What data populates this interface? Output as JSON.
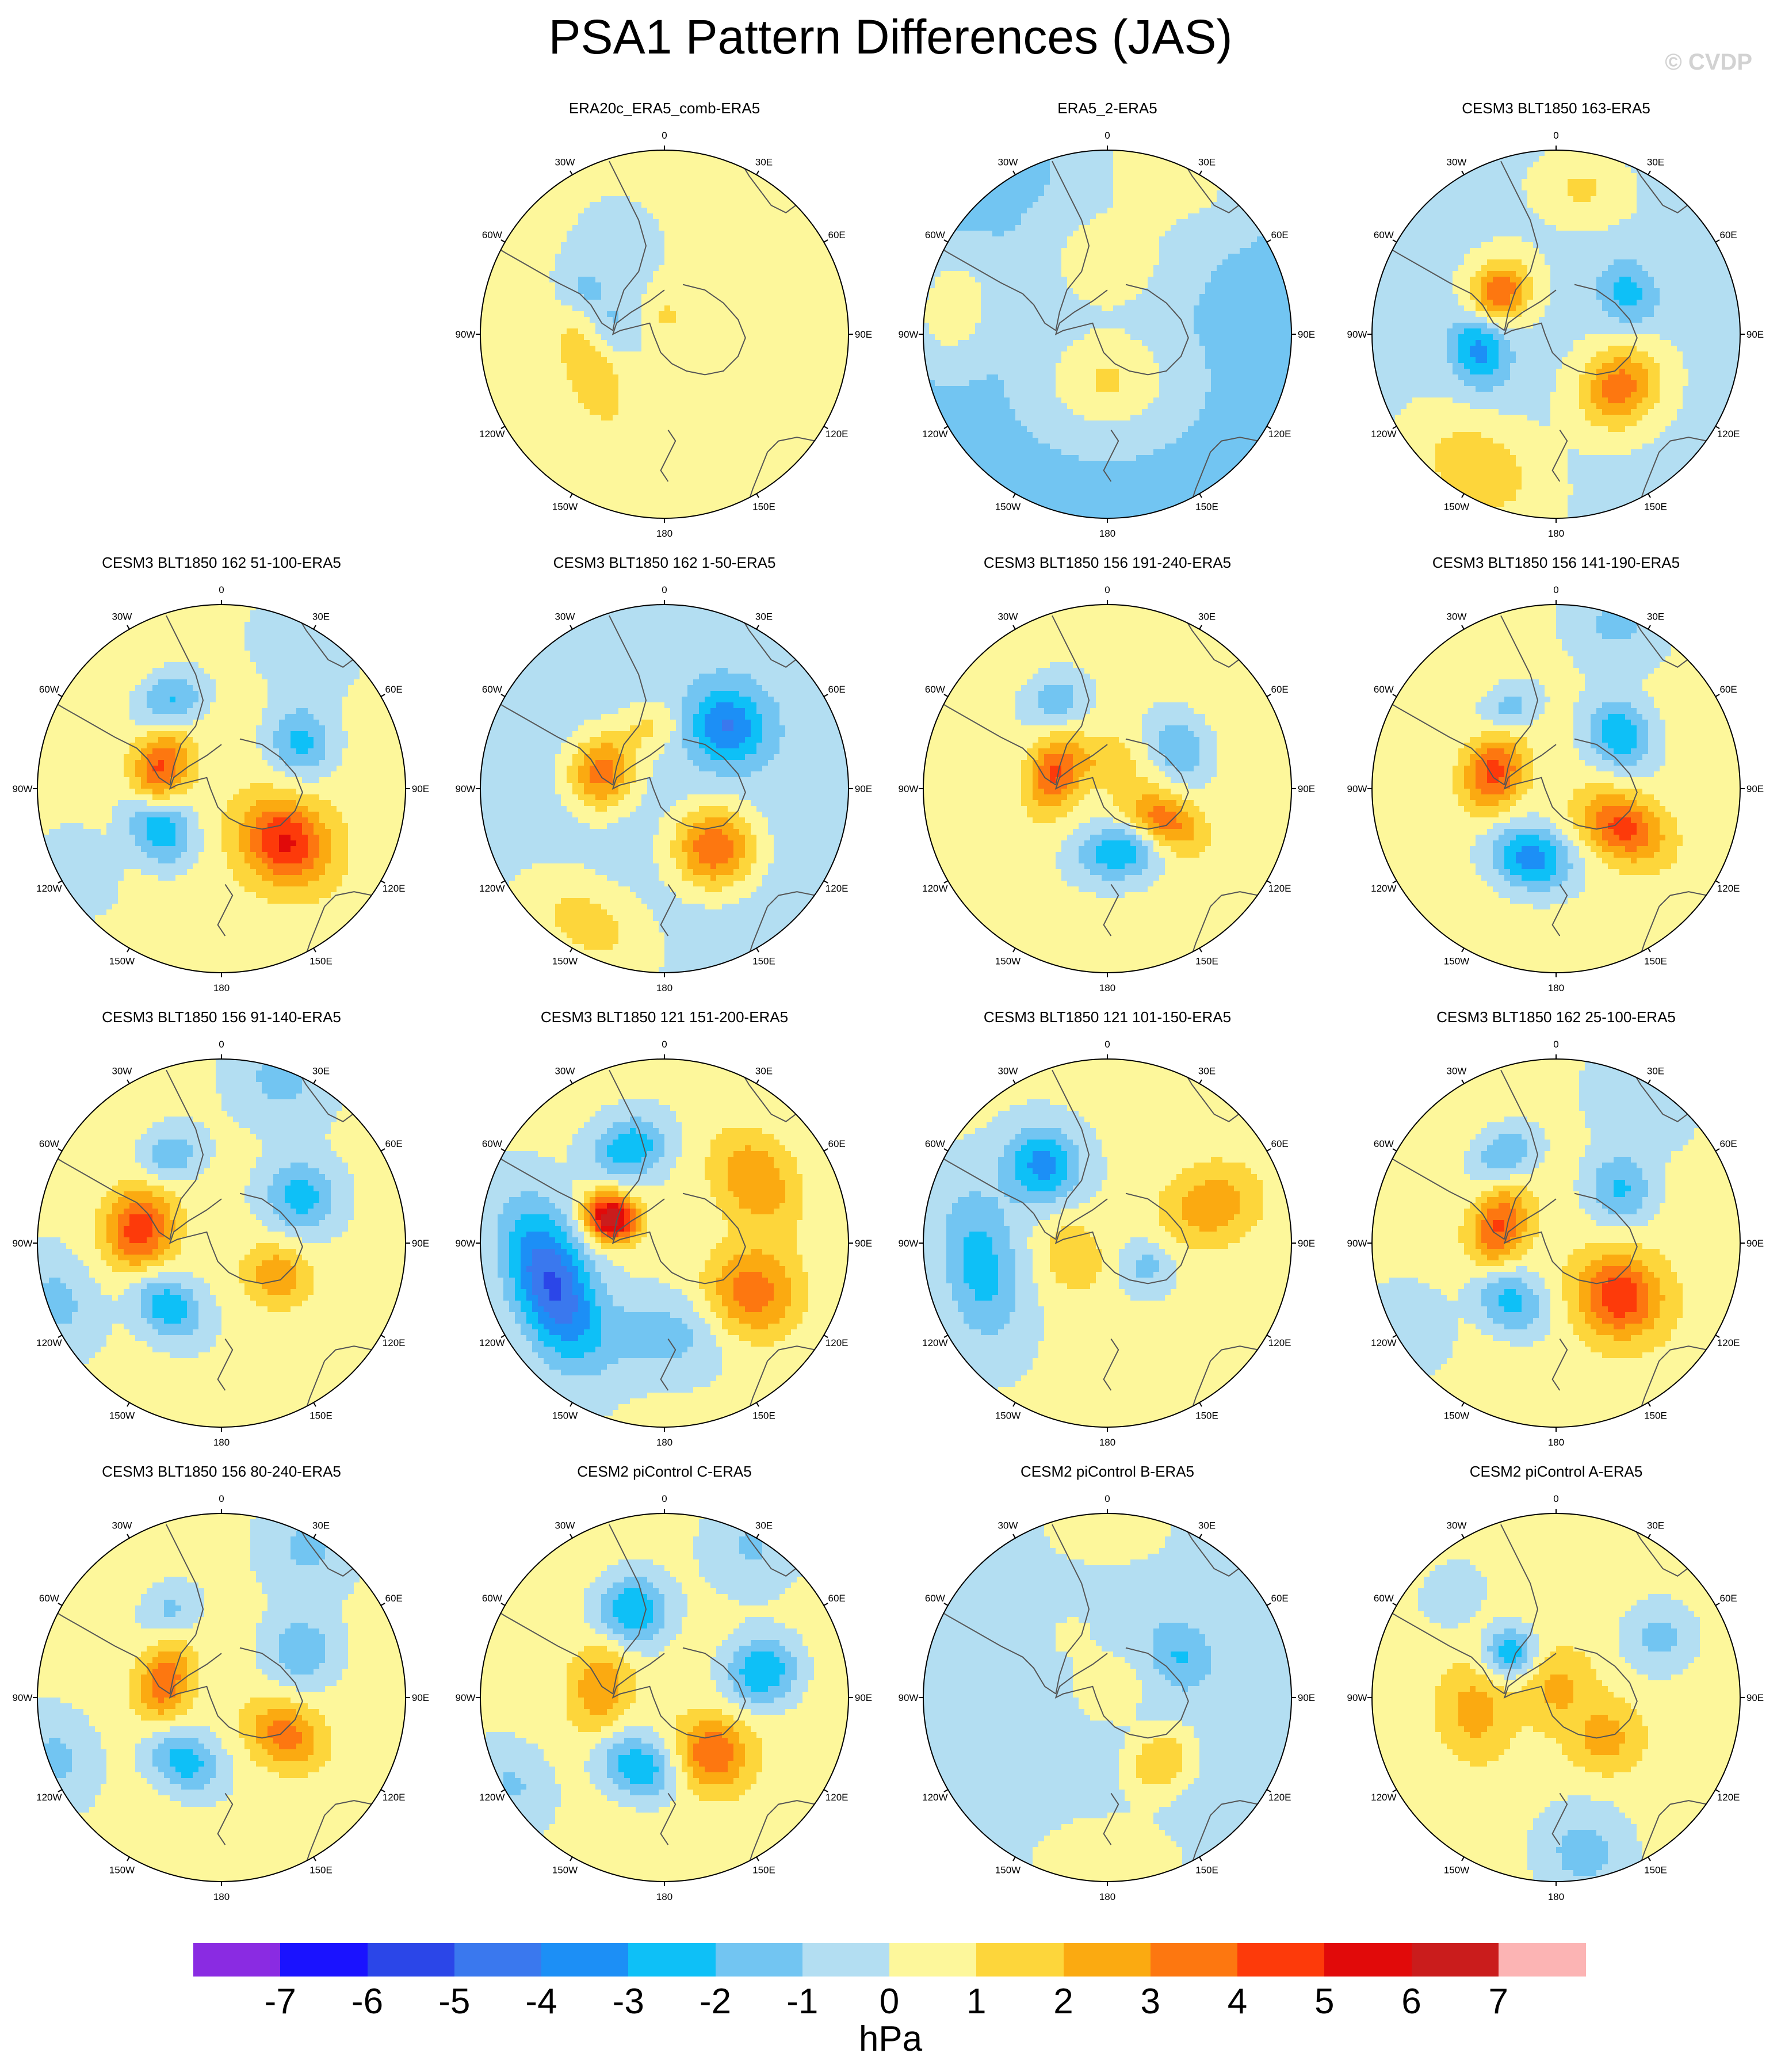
{
  "figure": {
    "title": "PSA1 Pattern Differences (JAS)",
    "watermark": "© CVDP"
  },
  "colors": {
    "levels": [
      "#8a2be2",
      "#1a12ff",
      "#2b46e8",
      "#3a78ee",
      "#1c8ff6",
      "#0ec0f7",
      "#72c5f2",
      "#b3def2",
      "#fdf79b",
      "#fdd63b",
      "#fbaa11",
      "#fd7710",
      "#fd3a0a",
      "#e10a0a",
      "#ca1c1c",
      "#fcb4b4"
    ],
    "coast": "#555555",
    "rim": "#000000"
  },
  "map_labels": {
    "lon_labels": [
      "0",
      "30E",
      "60E",
      "90E",
      "120E",
      "150E",
      "180",
      "150W",
      "120W",
      "90W",
      "60W",
      "30W"
    ]
  },
  "panels": [
    {
      "id": "p1",
      "title": "ERA20c_ERA5_comb-ERA5",
      "base": 0,
      "anomalies": [
        {
          "lon": -110,
          "r": 0.44,
          "amp": 2.0,
          "sx": 0.2,
          "sy": 0.11
        },
        {
          "lon": -80,
          "r": 0.3,
          "amp": -1.3,
          "sx": 0.14,
          "sy": 0.1
        },
        {
          "lon": 10,
          "r": 0.1,
          "amp": 1.2,
          "sx": 0.09,
          "sy": 0.08
        },
        {
          "lon": -60,
          "r": 0.5,
          "amp": -1.3,
          "sx": 0.1,
          "sy": 0.08
        },
        {
          "lon": -170,
          "r": 0.72,
          "amp": 0.8,
          "sx": 0.3,
          "sy": 0.3
        }
      ]
    },
    {
      "id": "p2",
      "title": "ERA5_2-ERA5",
      "base": -1.2,
      "anomalies": [
        {
          "lon": 180,
          "r": 0.25,
          "amp": 2.3,
          "sx": 0.25,
          "sy": 0.2
        },
        {
          "lon": 0,
          "r": 0.4,
          "amp": 2.0,
          "sx": 0.25,
          "sy": 0.2
        },
        {
          "lon": 20,
          "r": 0.95,
          "amp": 2.0,
          "sx": 0.3,
          "sy": 0.2
        },
        {
          "lon": -80,
          "r": 0.85,
          "amp": 2.0,
          "sx": 0.2,
          "sy": 0.15
        }
      ]
    },
    {
      "id": "p3",
      "title": "CESM3 BLT1850 163-ERA5",
      "base": -0.2,
      "anomalies": [
        {
          "lon": -55,
          "r": 0.38,
          "amp": 4.2,
          "sx": 0.13,
          "sy": 0.11
        },
        {
          "lon": -100,
          "r": 0.42,
          "amp": -3.3,
          "sx": 0.15,
          "sy": 0.11
        },
        {
          "lon": 130,
          "r": 0.45,
          "amp": 3.8,
          "sx": 0.16,
          "sy": 0.14
        },
        {
          "lon": 60,
          "r": 0.45,
          "amp": -2.2,
          "sx": 0.13,
          "sy": 0.11
        },
        {
          "lon": -150,
          "r": 0.85,
          "amp": 2.0,
          "sx": 0.25,
          "sy": 0.18
        },
        {
          "lon": 10,
          "r": 0.8,
          "amp": 1.4,
          "sx": 0.16,
          "sy": 0.12
        }
      ]
    },
    {
      "id": "p4",
      "title": "CESM3 BLT1850 162 51-100-ERA5",
      "base": 0.6,
      "anomalies": [
        {
          "lon": -75,
          "r": 0.35,
          "amp": 4.0,
          "sx": 0.16,
          "sy": 0.1
        },
        {
          "lon": -120,
          "r": 0.4,
          "amp": -3.8,
          "sx": 0.16,
          "sy": 0.12
        },
        {
          "lon": 130,
          "r": 0.45,
          "amp": 4.6,
          "sx": 0.15,
          "sy": 0.17
        },
        {
          "lon": 60,
          "r": 0.5,
          "amp": -2.8,
          "sx": 0.14,
          "sy": 0.13
        },
        {
          "lon": -30,
          "r": 0.55,
          "amp": -2.8,
          "sx": 0.14,
          "sy": 0.11
        },
        {
          "lon": 30,
          "r": 0.9,
          "amp": -1.5,
          "sx": 0.25,
          "sy": 0.2
        },
        {
          "lon": -120,
          "r": 0.9,
          "amp": -1.5,
          "sx": 0.2,
          "sy": 0.15
        }
      ]
    },
    {
      "id": "p5",
      "title": "CESM3 BLT1850 162 1-50-ERA5",
      "base": -0.6,
      "anomalies": [
        {
          "lon": -75,
          "r": 0.35,
          "amp": 4.1,
          "sx": 0.15,
          "sy": 0.13
        },
        {
          "lon": 140,
          "r": 0.42,
          "amp": 4.4,
          "sx": 0.16,
          "sy": 0.16
        },
        {
          "lon": 45,
          "r": 0.48,
          "amp": -3.5,
          "sx": 0.15,
          "sy": 0.14
        },
        {
          "lon": -150,
          "r": 0.85,
          "amp": 2.0,
          "sx": 0.3,
          "sy": 0.18
        },
        {
          "lon": -10,
          "r": 0.35,
          "amp": 1.6,
          "sx": 0.12,
          "sy": 0.1
        }
      ]
    },
    {
      "id": "p6",
      "title": "CESM3 BLT1850 156 191-240-ERA5",
      "base": 0.3,
      "anomalies": [
        {
          "lon": -75,
          "r": 0.3,
          "amp": 3.8,
          "sx": 0.15,
          "sy": 0.1
        },
        {
          "lon": 170,
          "r": 0.35,
          "amp": -3.1,
          "sx": 0.16,
          "sy": 0.11
        },
        {
          "lon": 120,
          "r": 0.35,
          "amp": 3.5,
          "sx": 0.1,
          "sy": 0.16
        },
        {
          "lon": 60,
          "r": 0.45,
          "amp": -2.3,
          "sx": 0.13,
          "sy": 0.1
        },
        {
          "lon": -30,
          "r": 0.55,
          "amp": -2.0,
          "sx": 0.12,
          "sy": 0.1
        },
        {
          "lon": 0,
          "r": 0.15,
          "amp": 1.5,
          "sx": 0.12,
          "sy": 0.1
        }
      ]
    },
    {
      "id": "p7",
      "title": "CESM3 BLT1850 156 141-190-ERA5",
      "base": 0.4,
      "anomalies": [
        {
          "lon": -75,
          "r": 0.35,
          "amp": 4.0,
          "sx": 0.15,
          "sy": 0.11
        },
        {
          "lon": -160,
          "r": 0.4,
          "amp": -3.9,
          "sx": 0.16,
          "sy": 0.12
        },
        {
          "lon": 120,
          "r": 0.42,
          "amp": 4.0,
          "sx": 0.12,
          "sy": 0.17
        },
        {
          "lon": 50,
          "r": 0.45,
          "amp": -3.3,
          "sx": 0.14,
          "sy": 0.12
        },
        {
          "lon": -30,
          "r": 0.5,
          "amp": -1.9,
          "sx": 0.12,
          "sy": 0.09
        },
        {
          "lon": 20,
          "r": 0.95,
          "amp": -1.6,
          "sx": 0.2,
          "sy": 0.18
        }
      ]
    },
    {
      "id": "p8",
      "title": "CESM3 BLT1850 156 91-140-ERA5",
      "base": 0.3,
      "anomalies": [
        {
          "lon": -80,
          "r": 0.45,
          "amp": 4.4,
          "sx": 0.16,
          "sy": 0.13
        },
        {
          "lon": -140,
          "r": 0.45,
          "amp": -3.1,
          "sx": 0.15,
          "sy": 0.11
        },
        {
          "lon": 120,
          "r": 0.35,
          "amp": 2.5,
          "sx": 0.12,
          "sy": 0.13
        },
        {
          "lon": 60,
          "r": 0.5,
          "amp": -2.8,
          "sx": 0.14,
          "sy": 0.14
        },
        {
          "lon": -30,
          "r": 0.55,
          "amp": -2.1,
          "sx": 0.12,
          "sy": 0.1
        },
        {
          "lon": 20,
          "r": 0.95,
          "amp": -1.6,
          "sx": 0.2,
          "sy": 0.18
        },
        {
          "lon": -110,
          "r": 0.95,
          "amp": -1.6,
          "sx": 0.2,
          "sy": 0.15
        }
      ]
    },
    {
      "id": "p9",
      "title": "CESM3 BLT1850 121 151-200-ERA5",
      "base": 0.2,
      "anomalies": [
        {
          "lon": -65,
          "r": 0.32,
          "amp": 6.8,
          "sx": 0.09,
          "sy": 0.1
        },
        {
          "lon": -110,
          "r": 0.65,
          "amp": -5.4,
          "sx": 0.3,
          "sy": 0.15
        },
        {
          "lon": -20,
          "r": 0.55,
          "amp": -3.1,
          "sx": 0.14,
          "sy": 0.11
        },
        {
          "lon": 120,
          "r": 0.55,
          "amp": 3.5,
          "sx": 0.18,
          "sy": 0.18
        },
        {
          "lon": 55,
          "r": 0.6,
          "amp": 2.8,
          "sx": 0.2,
          "sy": 0.15
        },
        {
          "lon": -180,
          "r": 0.5,
          "amp": -1.8,
          "sx": 0.25,
          "sy": 0.15
        }
      ]
    },
    {
      "id": "p10",
      "title": "CESM3 BLT1850 121 101-150-ERA5",
      "base": 0.2,
      "anomalies": [
        {
          "lon": -40,
          "r": 0.55,
          "amp": -3.6,
          "sx": 0.14,
          "sy": 0.15
        },
        {
          "lon": -100,
          "r": 0.7,
          "amp": -2.7,
          "sx": 0.3,
          "sy": 0.15
        },
        {
          "lon": -110,
          "r": 0.2,
          "amp": 1.8,
          "sx": 0.15,
          "sy": 0.12
        },
        {
          "lon": 70,
          "r": 0.6,
          "amp": 2.5,
          "sx": 0.16,
          "sy": 0.2
        },
        {
          "lon": 120,
          "r": 0.25,
          "amp": -1.6,
          "sx": 0.1,
          "sy": 0.1
        }
      ]
    },
    {
      "id": "p11",
      "title": "CESM3 BLT1850 162 25-100-ERA5",
      "base": 0.6,
      "anomalies": [
        {
          "lon": -75,
          "r": 0.32,
          "amp": 3.6,
          "sx": 0.17,
          "sy": 0.1
        },
        {
          "lon": -140,
          "r": 0.4,
          "amp": -3.1,
          "sx": 0.16,
          "sy": 0.12
        },
        {
          "lon": 130,
          "r": 0.45,
          "amp": 4.3,
          "sx": 0.15,
          "sy": 0.16
        },
        {
          "lon": 50,
          "r": 0.45,
          "amp": -2.7,
          "sx": 0.14,
          "sy": 0.13
        },
        {
          "lon": -30,
          "r": 0.55,
          "amp": -2.6,
          "sx": 0.14,
          "sy": 0.11
        },
        {
          "lon": 30,
          "r": 0.9,
          "amp": -1.6,
          "sx": 0.25,
          "sy": 0.2
        },
        {
          "lon": -120,
          "r": 0.9,
          "amp": -1.6,
          "sx": 0.2,
          "sy": 0.15
        }
      ]
    },
    {
      "id": "p12",
      "title": "CESM3 BLT1850 156 80-240-ERA5",
      "base": 0.4,
      "anomalies": [
        {
          "lon": -75,
          "r": 0.32,
          "amp": 3.4,
          "sx": 0.15,
          "sy": 0.1
        },
        {
          "lon": -150,
          "r": 0.4,
          "amp": -3.0,
          "sx": 0.15,
          "sy": 0.11
        },
        {
          "lon": 120,
          "r": 0.4,
          "amp": 3.1,
          "sx": 0.12,
          "sy": 0.15
        },
        {
          "lon": 60,
          "r": 0.5,
          "amp": -2.2,
          "sx": 0.14,
          "sy": 0.14
        },
        {
          "lon": -30,
          "r": 0.55,
          "amp": -1.6,
          "sx": 0.12,
          "sy": 0.1
        },
        {
          "lon": 30,
          "r": 0.95,
          "amp": -1.6,
          "sx": 0.2,
          "sy": 0.2
        },
        {
          "lon": -110,
          "r": 0.95,
          "amp": -1.6,
          "sx": 0.2,
          "sy": 0.15
        }
      ]
    },
    {
      "id": "p13",
      "title": "CESM2 piControl C-ERA5",
      "base": 0.5,
      "anomalies": [
        {
          "lon": -20,
          "r": 0.5,
          "amp": -3.5,
          "sx": 0.14,
          "sy": 0.14
        },
        {
          "lon": -160,
          "r": 0.4,
          "amp": -3.3,
          "sx": 0.16,
          "sy": 0.12
        },
        {
          "lon": 75,
          "r": 0.55,
          "amp": -3.5,
          "sx": 0.13,
          "sy": 0.14
        },
        {
          "lon": -80,
          "r": 0.35,
          "amp": 2.5,
          "sx": 0.17,
          "sy": 0.11
        },
        {
          "lon": 140,
          "r": 0.4,
          "amp": 3.5,
          "sx": 0.14,
          "sy": 0.14
        },
        {
          "lon": 30,
          "r": 0.95,
          "amp": -1.6,
          "sx": 0.2,
          "sy": 0.2
        },
        {
          "lon": -120,
          "r": 0.95,
          "amp": -1.6,
          "sx": 0.2,
          "sy": 0.15
        }
      ]
    },
    {
      "id": "p14",
      "title": "CESM2 piControl B-ERA5",
      "base": -0.6,
      "anomalies": [
        {
          "lon": 140,
          "r": 0.45,
          "amp": 2.6,
          "sx": 0.14,
          "sy": 0.12
        },
        {
          "lon": 60,
          "r": 0.45,
          "amp": -1.5,
          "sx": 0.12,
          "sy": 0.1
        },
        {
          "lon": 0,
          "r": 0.92,
          "amp": 1.5,
          "sx": 0.25,
          "sy": 0.15
        },
        {
          "lon": 180,
          "r": 0.9,
          "amp": 1.6,
          "sx": 0.3,
          "sy": 0.18
        },
        {
          "lon": -30,
          "r": 0.4,
          "amp": 0.8,
          "sx": 0.12,
          "sy": 0.1
        },
        {
          "lon": 0,
          "r": 0.05,
          "amp": 1.4,
          "sx": 0.14,
          "sy": 0.14
        }
      ]
    },
    {
      "id": "p15",
      "title": "CESM2 piControl A-ERA5",
      "base": 0.6,
      "anomalies": [
        {
          "lon": -45,
          "r": 0.35,
          "amp": -3.3,
          "sx": 0.1,
          "sy": 0.1
        },
        {
          "lon": -100,
          "r": 0.45,
          "amp": 2.0,
          "sx": 0.16,
          "sy": 0.12
        },
        {
          "lon": 0,
          "r": 0.05,
          "amp": 1.7,
          "sx": 0.14,
          "sy": 0.14
        },
        {
          "lon": 130,
          "r": 0.35,
          "amp": 1.9,
          "sx": 0.13,
          "sy": 0.13
        },
        {
          "lon": 170,
          "r": 0.85,
          "amp": -2.0,
          "sx": 0.2,
          "sy": 0.2
        },
        {
          "lon": 60,
          "r": 0.65,
          "amp": -1.9,
          "sx": 0.15,
          "sy": 0.15
        },
        {
          "lon": -45,
          "r": 0.8,
          "amp": -1.6,
          "sx": 0.14,
          "sy": 0.12
        }
      ]
    }
  ],
  "colorbar": {
    "labels": [
      "-7",
      "-6",
      "-5",
      "-4",
      "-3",
      "-2",
      "-1",
      "0",
      "1",
      "2",
      "3",
      "4",
      "5",
      "6",
      "7"
    ],
    "units": "hPa"
  }
}
